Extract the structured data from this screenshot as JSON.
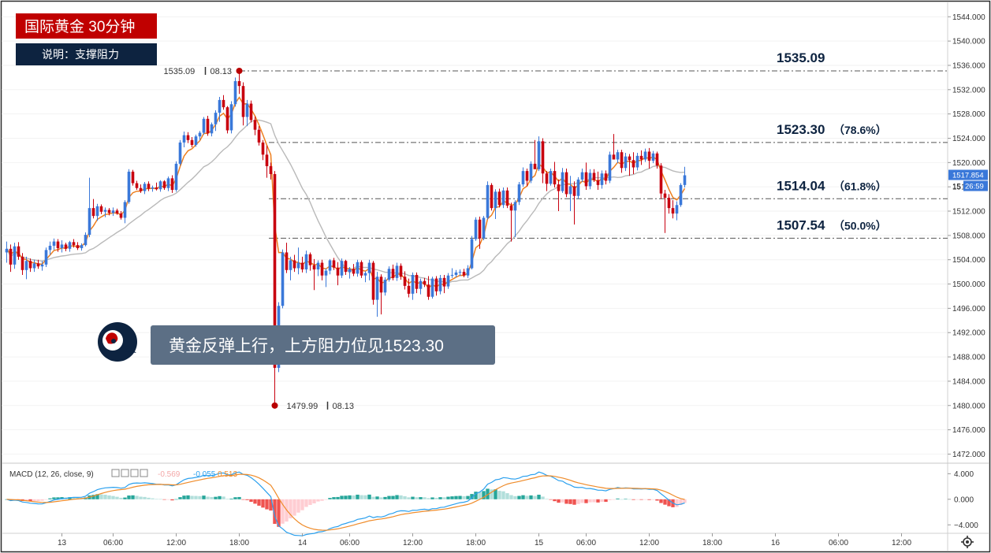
{
  "header": {
    "title": "国际黄金 30分钟",
    "subtitle": "说明：支撑阻力",
    "title_bg": "#c00000",
    "subtitle_bg": "#0d2340"
  },
  "annotation": {
    "text": "黄金反弹上行，上方阻力位见1523.30",
    "icon": "brain-head-icon"
  },
  "chart_data": {
    "type": "candlestick",
    "title": "国际黄金 30分钟",
    "ylim": [
      1470.5,
      1546.5
    ],
    "yticks": [
      1544,
      1540,
      1536,
      1532,
      1528,
      1524,
      1520,
      1516,
      1512,
      1508,
      1504,
      1500,
      1496,
      1492,
      1488,
      1484,
      1480,
      1476,
      1472
    ],
    "ytick_labels": [
      "1544.000",
      "1540.000",
      "1536.000",
      "1532.000",
      "1528.000",
      "1524.000",
      "1520.000",
      "1516.000",
      "1512.000",
      "1508.000",
      "1504.000",
      "1500.000",
      "1496.000",
      "1492.000",
      "1488.000",
      "1484.000",
      "1480.000",
      "1476.000",
      "1472.000"
    ],
    "xticks": [
      {
        "bar": 14,
        "label": "13"
      },
      {
        "bar": 27,
        "label": "06:00"
      },
      {
        "bar": 43,
        "label": "12:00"
      },
      {
        "bar": 59,
        "label": "18:00"
      },
      {
        "bar": 75,
        "label": "14"
      },
      {
        "bar": 87,
        "label": "06:00"
      },
      {
        "bar": 103,
        "label": "12:00"
      },
      {
        "bar": 119,
        "label": "18:00"
      },
      {
        "bar": 135,
        "label": "15"
      },
      {
        "bar": 147,
        "label": "06:00"
      },
      {
        "bar": 163,
        "label": "12:00"
      },
      {
        "bar": 179,
        "label": "18:00"
      },
      {
        "bar": 195,
        "label": "16"
      },
      {
        "bar": 211,
        "label": "06:00"
      },
      {
        "bar": 227,
        "label": "12:00"
      }
    ],
    "levels": [
      {
        "value": 1535.09,
        "label": "1535.09",
        "pct": ""
      },
      {
        "value": 1523.3,
        "label": "1523.30",
        "pct": "（78.6%）"
      },
      {
        "value": 1514.04,
        "label": "1514.04",
        "pct": "（61.8%）"
      },
      {
        "value": 1507.54,
        "label": "1507.54",
        "pct": "（50.0%）"
      }
    ],
    "high_marker": {
      "price": "1535.09",
      "date": "08.13",
      "value": 1535.09,
      "bar": 59
    },
    "low_marker": {
      "price": "1479.99",
      "date": "08.13",
      "value": 1479.99,
      "bar": 68
    },
    "last_price": "1517.854",
    "last_price_partial": "15",
    "countdown": "26:59",
    "candles": [
      [
        1505.2,
        1507.0,
        1503.5,
        1505.8
      ],
      [
        1505.8,
        1506.5,
        1502.0,
        1503.2
      ],
      [
        1503.2,
        1506.8,
        1502.5,
        1506.2
      ],
      [
        1506.2,
        1506.9,
        1504.0,
        1504.5
      ],
      [
        1504.5,
        1505.1,
        1501.5,
        1502.3
      ],
      [
        1502.3,
        1504.5,
        1500.8,
        1503.8
      ],
      [
        1503.8,
        1504.2,
        1502.0,
        1502.6
      ],
      [
        1502.6,
        1504.0,
        1502.0,
        1503.4
      ],
      [
        1503.4,
        1504.0,
        1502.5,
        1502.9
      ],
      [
        1502.9,
        1503.8,
        1502.2,
        1503.2
      ],
      [
        1503.2,
        1506.0,
        1502.8,
        1505.6
      ],
      [
        1505.6,
        1507.0,
        1504.8,
        1506.3
      ],
      [
        1506.3,
        1507.5,
        1505.6,
        1507.0
      ],
      [
        1507.0,
        1507.4,
        1505.3,
        1505.9
      ],
      [
        1505.9,
        1507.2,
        1505.2,
        1506.5
      ],
      [
        1506.5,
        1506.8,
        1505.4,
        1505.8
      ],
      [
        1505.8,
        1507.1,
        1505.3,
        1506.9
      ],
      [
        1506.9,
        1507.4,
        1506.0,
        1506.4
      ],
      [
        1506.4,
        1506.9,
        1505.6,
        1505.9
      ],
      [
        1505.9,
        1506.7,
        1505.5,
        1506.4
      ],
      [
        1506.4,
        1508.5,
        1506.2,
        1508.1
      ],
      [
        1508.1,
        1517.5,
        1507.7,
        1512.5
      ],
      [
        1512.5,
        1514.0,
        1510.8,
        1511.2
      ],
      [
        1511.2,
        1513.2,
        1510.4,
        1512.8
      ],
      [
        1512.8,
        1513.1,
        1511.5,
        1511.9
      ],
      [
        1511.9,
        1512.6,
        1511.0,
        1512.2
      ],
      [
        1512.2,
        1512.5,
        1511.3,
        1511.7
      ],
      [
        1511.7,
        1512.6,
        1511.2,
        1512.1
      ],
      [
        1512.1,
        1512.4,
        1511.4,
        1511.6
      ],
      [
        1511.6,
        1512.0,
        1510.6,
        1510.9
      ],
      [
        1510.9,
        1513.8,
        1510.0,
        1513.5
      ],
      [
        1513.5,
        1518.9,
        1513.2,
        1518.5
      ],
      [
        1518.5,
        1518.8,
        1516.2,
        1516.6
      ],
      [
        1516.6,
        1517.0,
        1515.5,
        1515.8
      ],
      [
        1515.8,
        1516.4,
        1515.0,
        1515.3
      ],
      [
        1515.3,
        1516.8,
        1514.8,
        1516.5
      ],
      [
        1516.5,
        1516.9,
        1515.3,
        1515.7
      ],
      [
        1515.7,
        1516.2,
        1515.2,
        1515.9
      ],
      [
        1515.9,
        1516.7,
        1515.4,
        1515.6
      ],
      [
        1515.6,
        1517.1,
        1515.2,
        1516.9
      ],
      [
        1516.9,
        1517.1,
        1515.5,
        1515.8
      ],
      [
        1515.8,
        1517.7,
        1515.3,
        1517.4
      ],
      [
        1517.4,
        1517.9,
        1515.0,
        1515.5
      ],
      [
        1515.5,
        1520.2,
        1515.2,
        1519.8
      ],
      [
        1519.8,
        1523.7,
        1519.5,
        1523.3
      ],
      [
        1523.3,
        1525.1,
        1522.5,
        1524.5
      ],
      [
        1524.5,
        1525.0,
        1523.2,
        1523.7
      ],
      [
        1523.7,
        1524.2,
        1522.5,
        1522.9
      ],
      [
        1522.9,
        1524.6,
        1522.6,
        1524.3
      ],
      [
        1524.3,
        1525.2,
        1523.7,
        1524.9
      ],
      [
        1524.9,
        1527.5,
        1524.6,
        1527.2
      ],
      [
        1527.2,
        1527.7,
        1524.4,
        1524.8
      ],
      [
        1524.8,
        1526.6,
        1524.3,
        1526.3
      ],
      [
        1526.3,
        1528.6,
        1525.2,
        1528.2
      ],
      [
        1528.2,
        1530.8,
        1526.7,
        1530.3
      ],
      [
        1530.3,
        1531.1,
        1528.7,
        1529.1
      ],
      [
        1529.1,
        1529.3,
        1524.8,
        1525.3
      ],
      [
        1525.3,
        1530.1,
        1524.8,
        1529.6
      ],
      [
        1529.6,
        1534.0,
        1529.2,
        1533.4
      ],
      [
        1533.4,
        1535.1,
        1531.3,
        1532.6
      ],
      [
        1532.6,
        1533.2,
        1526.1,
        1527.5
      ],
      [
        1527.5,
        1530.3,
        1526.0,
        1529.7
      ],
      [
        1529.7,
        1530.2,
        1526.6,
        1527.0
      ],
      [
        1527.0,
        1527.6,
        1524.5,
        1525.4
      ],
      [
        1525.4,
        1526.0,
        1522.8,
        1523.3
      ],
      [
        1523.3,
        1523.7,
        1520.4,
        1521.3
      ],
      [
        1521.3,
        1522.8,
        1517.5,
        1519.4
      ],
      [
        1519.4,
        1520.0,
        1517.2,
        1518.1
      ],
      [
        1518.1,
        1518.6,
        1480.0,
        1486.2
      ],
      [
        1486.2,
        1497.0,
        1485.5,
        1496.4
      ],
      [
        1496.4,
        1505.7,
        1496.0,
        1505.2
      ],
      [
        1505.2,
        1506.8,
        1501.8,
        1502.3
      ],
      [
        1502.3,
        1504.5,
        1500.6,
        1503.9
      ],
      [
        1503.9,
        1504.8,
        1502.0,
        1502.6
      ],
      [
        1502.6,
        1506.0,
        1501.6,
        1503.5
      ],
      [
        1503.5,
        1504.5,
        1501.9,
        1502.4
      ],
      [
        1502.4,
        1505.5,
        1501.8,
        1504.9
      ],
      [
        1504.9,
        1505.2,
        1502.2,
        1503.1
      ],
      [
        1503.1,
        1504.1,
        1499.0,
        1502.4
      ],
      [
        1502.4,
        1503.9,
        1501.3,
        1503.5
      ],
      [
        1503.5,
        1504.0,
        1500.6,
        1501.4
      ],
      [
        1501.4,
        1502.6,
        1499.5,
        1502.2
      ],
      [
        1502.2,
        1504.1,
        1501.6,
        1503.9
      ],
      [
        1503.9,
        1504.3,
        1502.3,
        1502.7
      ],
      [
        1502.7,
        1503.6,
        1499.8,
        1501.4
      ],
      [
        1501.4,
        1504.2,
        1501.0,
        1503.8
      ],
      [
        1503.8,
        1504.0,
        1501.5,
        1502.0
      ],
      [
        1502.0,
        1502.8,
        1500.9,
        1502.5
      ],
      [
        1502.5,
        1503.3,
        1501.3,
        1501.7
      ],
      [
        1501.7,
        1504.0,
        1501.2,
        1503.6
      ],
      [
        1503.6,
        1503.9,
        1501.0,
        1501.4
      ],
      [
        1501.4,
        1502.1,
        1500.3,
        1501.8
      ],
      [
        1501.8,
        1504.0,
        1500.6,
        1503.5
      ],
      [
        1503.5,
        1503.8,
        1496.6,
        1497.4
      ],
      [
        1497.4,
        1502.0,
        1494.6,
        1501.2
      ],
      [
        1501.2,
        1501.6,
        1495.0,
        1498.6
      ],
      [
        1498.6,
        1501.1,
        1498.1,
        1500.7
      ],
      [
        1500.7,
        1502.9,
        1500.4,
        1502.5
      ],
      [
        1502.5,
        1503.2,
        1500.6,
        1501.0
      ],
      [
        1501.0,
        1503.5,
        1500.5,
        1503.0
      ],
      [
        1503.0,
        1503.4,
        1500.7,
        1501.2
      ],
      [
        1501.2,
        1502.1,
        1499.1,
        1499.7
      ],
      [
        1499.7,
        1500.9,
        1497.8,
        1498.4
      ],
      [
        1498.4,
        1501.9,
        1497.4,
        1501.5
      ],
      [
        1501.5,
        1501.9,
        1498.5,
        1499.2
      ],
      [
        1499.2,
        1500.9,
        1498.3,
        1500.5
      ],
      [
        1500.5,
        1501.0,
        1499.5,
        1499.9
      ],
      [
        1499.9,
        1501.3,
        1497.4,
        1497.9
      ],
      [
        1497.9,
        1501.2,
        1497.6,
        1500.9
      ],
      [
        1500.9,
        1501.3,
        1498.1,
        1498.8
      ],
      [
        1498.8,
        1501.5,
        1498.3,
        1501.0
      ],
      [
        1501.0,
        1501.5,
        1498.5,
        1499.6
      ],
      [
        1499.6,
        1501.8,
        1499.2,
        1501.4
      ],
      [
        1501.4,
        1502.6,
        1501.0,
        1501.5
      ],
      [
        1501.5,
        1502.3,
        1501.1,
        1501.9
      ],
      [
        1501.9,
        1502.4,
        1501.3,
        1502.0
      ],
      [
        1502.0,
        1502.5,
        1501.1,
        1501.4
      ],
      [
        1501.4,
        1503.1,
        1501.0,
        1502.6
      ],
      [
        1502.6,
        1507.9,
        1502.4,
        1507.4
      ],
      [
        1507.4,
        1511.0,
        1507.1,
        1510.6
      ],
      [
        1510.6,
        1511.1,
        1505.8,
        1507.5
      ],
      [
        1507.5,
        1511.2,
        1507.2,
        1510.9
      ],
      [
        1510.9,
        1516.9,
        1510.6,
        1516.3
      ],
      [
        1516.3,
        1516.6,
        1512.1,
        1512.5
      ],
      [
        1512.5,
        1515.6,
        1510.7,
        1515.2
      ],
      [
        1515.2,
        1515.7,
        1512.6,
        1513.0
      ],
      [
        1513.0,
        1515.9,
        1512.5,
        1515.4
      ],
      [
        1515.4,
        1515.9,
        1512.5,
        1512.9
      ],
      [
        1512.9,
        1513.4,
        1507.0,
        1512.1
      ],
      [
        1512.1,
        1513.8,
        1507.7,
        1513.5
      ],
      [
        1513.5,
        1516.8,
        1513.0,
        1516.4
      ],
      [
        1516.4,
        1519.2,
        1516.0,
        1518.6
      ],
      [
        1518.6,
        1519.0,
        1516.1,
        1517.0
      ],
      [
        1517.0,
        1520.2,
        1516.6,
        1519.8
      ],
      [
        1519.8,
        1523.7,
        1519.4,
        1518.9
      ],
      [
        1518.9,
        1524.3,
        1518.6,
        1523.5
      ],
      [
        1523.5,
        1524.0,
        1516.6,
        1518.2
      ],
      [
        1518.2,
        1518.6,
        1515.3,
        1516.5
      ],
      [
        1516.5,
        1519.0,
        1516.2,
        1518.6
      ],
      [
        1518.6,
        1520.1,
        1515.9,
        1516.4
      ],
      [
        1516.4,
        1517.2,
        1512.0,
        1515.3
      ],
      [
        1515.3,
        1519.1,
        1515.0,
        1518.4
      ],
      [
        1518.4,
        1519.0,
        1514.3,
        1514.8
      ],
      [
        1514.8,
        1517.8,
        1512.0,
        1516.1
      ],
      [
        1516.1,
        1516.9,
        1509.8,
        1514.5
      ],
      [
        1514.5,
        1517.6,
        1514.0,
        1517.2
      ],
      [
        1517.2,
        1519.0,
        1516.8,
        1518.4
      ],
      [
        1518.4,
        1520.0,
        1515.5,
        1516.1
      ],
      [
        1516.1,
        1518.9,
        1515.6,
        1518.3
      ],
      [
        1518.3,
        1518.9,
        1516.8,
        1517.1
      ],
      [
        1517.1,
        1518.5,
        1515.5,
        1516.3
      ],
      [
        1516.3,
        1518.7,
        1515.7,
        1518.2
      ],
      [
        1518.2,
        1518.7,
        1516.4,
        1517.0
      ],
      [
        1517.0,
        1521.8,
        1516.6,
        1521.3
      ],
      [
        1521.3,
        1524.7,
        1520.8,
        1520.5
      ],
      [
        1520.5,
        1522.1,
        1519.9,
        1521.7
      ],
      [
        1521.7,
        1522.1,
        1518.3,
        1519.1
      ],
      [
        1519.1,
        1521.6,
        1518.6,
        1521.0
      ],
      [
        1521.0,
        1521.4,
        1517.8,
        1520.4
      ],
      [
        1520.4,
        1521.7,
        1518.1,
        1519.2
      ],
      [
        1519.2,
        1521.6,
        1518.7,
        1521.1
      ],
      [
        1521.1,
        1522.0,
        1519.6,
        1520.5
      ],
      [
        1520.5,
        1522.3,
        1520.1,
        1521.8
      ],
      [
        1521.8,
        1522.4,
        1519.0,
        1520.3
      ],
      [
        1520.3,
        1521.9,
        1519.9,
        1521.5
      ],
      [
        1521.5,
        1521.8,
        1519.0,
        1519.5
      ],
      [
        1519.5,
        1519.9,
        1514.0,
        1514.9
      ],
      [
        1514.9,
        1515.5,
        1508.4,
        1514.2
      ],
      [
        1514.2,
        1514.8,
        1511.6,
        1512.5
      ],
      [
        1512.5,
        1513.8,
        1510.8,
        1511.6
      ],
      [
        1511.6,
        1513.6,
        1510.5,
        1513.0
      ],
      [
        1513.0,
        1516.6,
        1512.7,
        1516.3
      ],
      [
        1516.3,
        1519.3,
        1515.9,
        1517.9
      ]
    ],
    "ema_fast": [],
    "sma_slow": [],
    "macd": {
      "label": "MACD (12, 26, close, 9)",
      "hist_value": "-0.569",
      "macd_value": "-0.055",
      "signal_value": "0.513",
      "ylim": [
        -5.2,
        5.4
      ],
      "yticks": [
        4.0,
        0.0,
        -4.0
      ],
      "ytick_labels": [
        "4.000",
        "0.000",
        "−4.000"
      ]
    },
    "colors": {
      "up": "#3a78d9",
      "down": "#c8000f",
      "ema": "#ee7f1f",
      "sma": "#b9b9b9",
      "level": "#555555",
      "macd": "#2ba0ee",
      "signal": "#ef8b29",
      "hist_pos_strong": "#26a69a",
      "hist_pos_weak": "#b2dfdb",
      "hist_neg_strong": "#ef5350",
      "hist_neg_weak": "#ffcdd2"
    }
  }
}
